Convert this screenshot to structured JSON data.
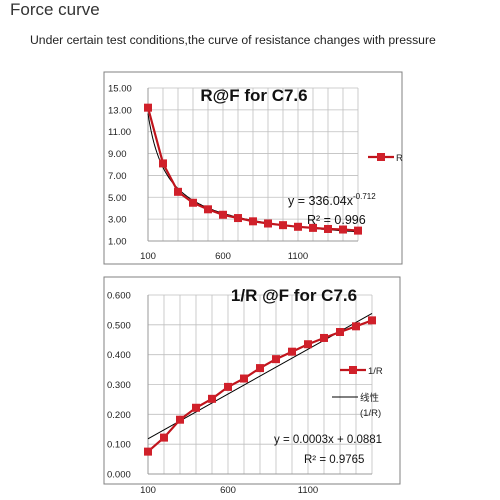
{
  "page": {
    "title": "Force curve",
    "subtitle": "Under certain test conditions,the curve of resistance changes with pressure"
  },
  "colors": {
    "series": "#c0141c",
    "marker": "#d0202a",
    "trend": "#000000",
    "grid": "#bfbfbf",
    "frame": "#808080"
  },
  "chart_data": [
    {
      "type": "line",
      "title": "R@F for C7.6",
      "xlabel": "",
      "ylabel": "",
      "ylim": [
        1.0,
        15.0
      ],
      "y_ticks": [
        "15.00",
        "13.00",
        "11.00",
        "9.00",
        "7.00",
        "5.00",
        "3.00",
        "1.00"
      ],
      "x_ticks": [
        "100",
        "600",
        "1100"
      ],
      "grid": true,
      "legend_position": "right",
      "series": [
        {
          "name": "R",
          "x": [
            100,
            200,
            300,
            400,
            500,
            600,
            700,
            800,
            900,
            1000,
            1100,
            1200,
            1300,
            1400,
            1500
          ],
          "values": [
            13.2,
            8.1,
            5.5,
            4.5,
            3.9,
            3.4,
            3.1,
            2.8,
            2.6,
            2.45,
            2.3,
            2.2,
            2.1,
            2.05,
            1.95
          ]
        }
      ],
      "trendline": {
        "equation": "y = 336.04x",
        "exponent": "-0.712",
        "r2": "R² = 0.996"
      }
    },
    {
      "type": "line",
      "title": "1/R @F for C7.6",
      "xlabel": "",
      "ylabel": "",
      "ylim": [
        0.0,
        0.6
      ],
      "y_ticks": [
        "0.600",
        "0.500",
        "0.400",
        "0.300",
        "0.200",
        "0.100",
        "0.000"
      ],
      "x_ticks": [
        "100",
        "600",
        "1100"
      ],
      "grid": true,
      "legend_position": "right",
      "series": [
        {
          "name": "1/R",
          "x": [
            100,
            200,
            300,
            400,
            500,
            600,
            700,
            800,
            900,
            1000,
            1100,
            1200,
            1300,
            1400,
            1500
          ],
          "values": [
            0.075,
            0.122,
            0.182,
            0.222,
            0.252,
            0.292,
            0.32,
            0.355,
            0.385,
            0.41,
            0.435,
            0.456,
            0.476,
            0.495,
            0.515
          ]
        }
      ],
      "trendline": {
        "name": "线性 (1/R)",
        "name_line1": "线性",
        "name_line2": "(1/R)",
        "slope": 0.0003,
        "intercept": 0.0881,
        "equation": "y = 0.0003x + 0.0881",
        "r2": "R² = 0.9765"
      }
    }
  ]
}
